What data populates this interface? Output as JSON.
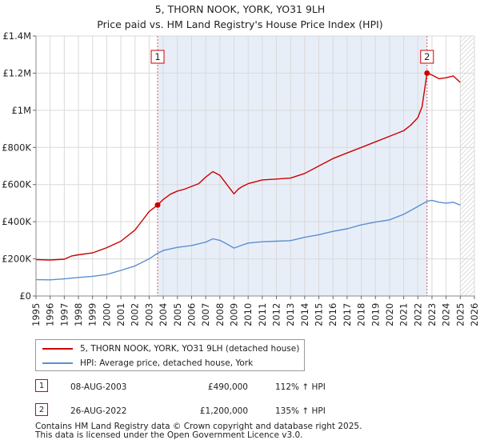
{
  "title_line1": "5, THORN NOOK, YORK, YO31 9LH",
  "title_line2": "Price paid vs. HM Land Registry's House Price Index (HPI)",
  "colors": {
    "property": "#cc0000",
    "hpi": "#5b8fd0",
    "shade": "#e8eef8",
    "grid": "#d9d9d9"
  },
  "chart_data": {
    "type": "line",
    "xlim": [
      1995,
      2026
    ],
    "ylim": [
      0,
      1400000
    ],
    "x_ticks": [
      1995,
      1996,
      1997,
      1998,
      1999,
      2000,
      2001,
      2002,
      2003,
      2004,
      2005,
      2006,
      2007,
      2008,
      2009,
      2010,
      2011,
      2012,
      2013,
      2014,
      2015,
      2016,
      2017,
      2018,
      2019,
      2020,
      2021,
      2022,
      2023,
      2024,
      2025,
      2026
    ],
    "y_ticks": [
      {
        "value": 0,
        "label": "£0"
      },
      {
        "value": 200000,
        "label": "£200K"
      },
      {
        "value": 400000,
        "label": "£400K"
      },
      {
        "value": 600000,
        "label": "£600K"
      },
      {
        "value": 800000,
        "label": "£800K"
      },
      {
        "value": 1000000,
        "label": "£1M"
      },
      {
        "value": 1200000,
        "label": "£1.2M"
      },
      {
        "value": 1400000,
        "label": "£1.4M"
      }
    ],
    "grid": true,
    "shaded_period": [
      2003.6,
      2022.65
    ],
    "hatched_from": 2025.0,
    "series": [
      {
        "name": "5, THORN NOOK, YORK, YO31 9LH (detached house)",
        "x": [
          1995,
          1996,
          1997,
          1997.5,
          1998,
          1999,
          2000,
          2001,
          2002,
          2002.5,
          2003,
          2003.6,
          2004,
          2004.5,
          2005,
          2005.5,
          2006,
          2006.5,
          2007,
          2007.5,
          2008,
          2008.5,
          2009,
          2009.3,
          2009.6,
          2010,
          2011,
          2012,
          2013,
          2014,
          2015,
          2016,
          2017,
          2018,
          2019,
          2020,
          2021,
          2021.5,
          2022,
          2022.3,
          2022.65,
          2023,
          2023.5,
          2024,
          2024.5,
          2025
        ],
        "y": [
          196000,
          194000,
          198000,
          215000,
          222000,
          232000,
          260000,
          295000,
          355000,
          405000,
          455000,
          490000,
          520000,
          548000,
          565000,
          575000,
          590000,
          605000,
          640000,
          670000,
          650000,
          600000,
          550000,
          575000,
          590000,
          605000,
          625000,
          630000,
          635000,
          660000,
          700000,
          740000,
          770000,
          800000,
          830000,
          860000,
          890000,
          920000,
          960000,
          1020000,
          1200000,
          1190000,
          1170000,
          1175000,
          1185000,
          1150000
        ]
      },
      {
        "name": "HPI: Average price, detached house, York",
        "x": [
          1995,
          1996,
          1997,
          1998,
          1999,
          2000,
          2001,
          2002,
          2003,
          2003.6,
          2004,
          2005,
          2006,
          2007,
          2007.5,
          2008,
          2008.5,
          2009,
          2009.5,
          2010,
          2011,
          2012,
          2013,
          2014,
          2015,
          2016,
          2017,
          2018,
          2019,
          2020,
          2021,
          2022,
          2022.65,
          2023,
          2023.5,
          2024,
          2024.5,
          2025
        ],
        "y": [
          88000,
          87000,
          92000,
          100000,
          106000,
          116000,
          138000,
          162000,
          200000,
          230000,
          245000,
          262000,
          272000,
          290000,
          308000,
          300000,
          280000,
          258000,
          272000,
          285000,
          292000,
          295000,
          298000,
          316000,
          330000,
          348000,
          362000,
          383000,
          398000,
          410000,
          440000,
          482000,
          510000,
          515000,
          505000,
          500000,
          505000,
          490000
        ]
      }
    ],
    "annotations": [
      {
        "label": "1",
        "x": 2003.6,
        "y": 490000
      },
      {
        "label": "2",
        "x": 2022.65,
        "y": 1200000
      }
    ]
  },
  "legend": [
    {
      "label": "5, THORN NOOK, YORK, YO31 9LH (detached house)"
    },
    {
      "label": "HPI: Average price, detached house, York"
    }
  ],
  "sales": [
    {
      "num": "1",
      "date": "08-AUG-2003",
      "price": "£490,000",
      "pct": "112% ↑ HPI"
    },
    {
      "num": "2",
      "date": "26-AUG-2022",
      "price": "£1,200,000",
      "pct": "135% ↑ HPI"
    }
  ],
  "footer_line1": "Contains HM Land Registry data © Crown copyright and database right 2025.",
  "footer_line2": "This data is licensed under the Open Government Licence v3.0."
}
